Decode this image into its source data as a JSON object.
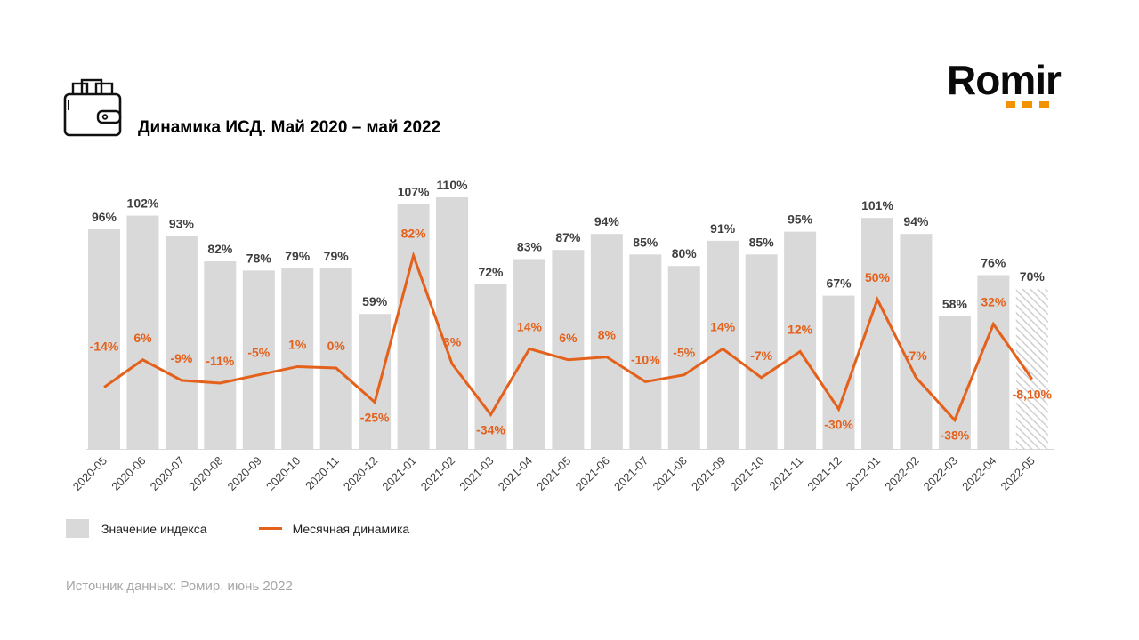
{
  "header": {
    "title": "Динамика ИСД. Май 2020 – май 2022",
    "icon": "wallet-icon",
    "logo_text": "Romir",
    "logo_accent": "#f39200"
  },
  "legend": {
    "bar_label": "Значение индекса",
    "line_label": "Месячная динамика"
  },
  "footer": {
    "source": "Источник данных: Ромир, июнь 2022"
  },
  "colors": {
    "bar": "#d9d9d9",
    "line": "#e4611b",
    "bar_label": "#404040",
    "axis_label": "#404040"
  },
  "chart_data": {
    "type": "bar",
    "title": "Динамика ИСД. Май 2020 – май 2022",
    "xlabel": "",
    "ylabel": "",
    "grid": false,
    "legend_position": "bottom-left",
    "categories": [
      "2020-05",
      "2020-06",
      "2020-07",
      "2020-08",
      "2020-09",
      "2020-10",
      "2020-11",
      "2020-12",
      "2021-01",
      "2021-02",
      "2021-03",
      "2021-04",
      "2021-05",
      "2021-06",
      "2021-07",
      "2021-08",
      "2021-09",
      "2021-10",
      "2021-11",
      "2021-12",
      "2022-01",
      "2022-02",
      "2022-03",
      "2022-04",
      "2022-05"
    ],
    "series": [
      {
        "name": "Значение индекса",
        "type": "bar",
        "values": [
          96,
          102,
          93,
          82,
          78,
          79,
          79,
          59,
          107,
          110,
          72,
          83,
          87,
          94,
          85,
          80,
          91,
          85,
          95,
          67,
          101,
          94,
          58,
          76,
          70
        ],
        "labels": [
          "96%",
          "102%",
          "93%",
          "82%",
          "78%",
          "79%",
          "79%",
          "59%",
          "107%",
          "110%",
          "72%",
          "83%",
          "87%",
          "94%",
          "85%",
          "80%",
          "91%",
          "85%",
          "95%",
          "67%",
          "101%",
          "94%",
          "58%",
          "76%",
          "70%"
        ],
        "hatched_last": true
      },
      {
        "name": "Месячная динамика",
        "type": "line",
        "values": [
          -14,
          6,
          -9,
          -11,
          -5,
          1,
          0,
          -25,
          82,
          3,
          -34,
          14,
          6,
          8,
          -10,
          -5,
          14,
          -7,
          12,
          -30,
          50,
          -7,
          -38,
          32,
          -8.1
        ],
        "labels": [
          "-14%",
          "6%",
          "-9%",
          "-11%",
          "-5%",
          "1%",
          "0%",
          "-25%",
          "82%",
          "3%",
          "-34%",
          "14%",
          "6%",
          "8%",
          "-10%",
          "-5%",
          "14%",
          "-7%",
          "12%",
          "-30%",
          "50%",
          "-7%",
          "-38%",
          "32%",
          "-8,10%"
        ]
      }
    ],
    "ylim_bar": [
      0,
      110
    ],
    "ylim_line": [
      -38,
      82
    ]
  }
}
